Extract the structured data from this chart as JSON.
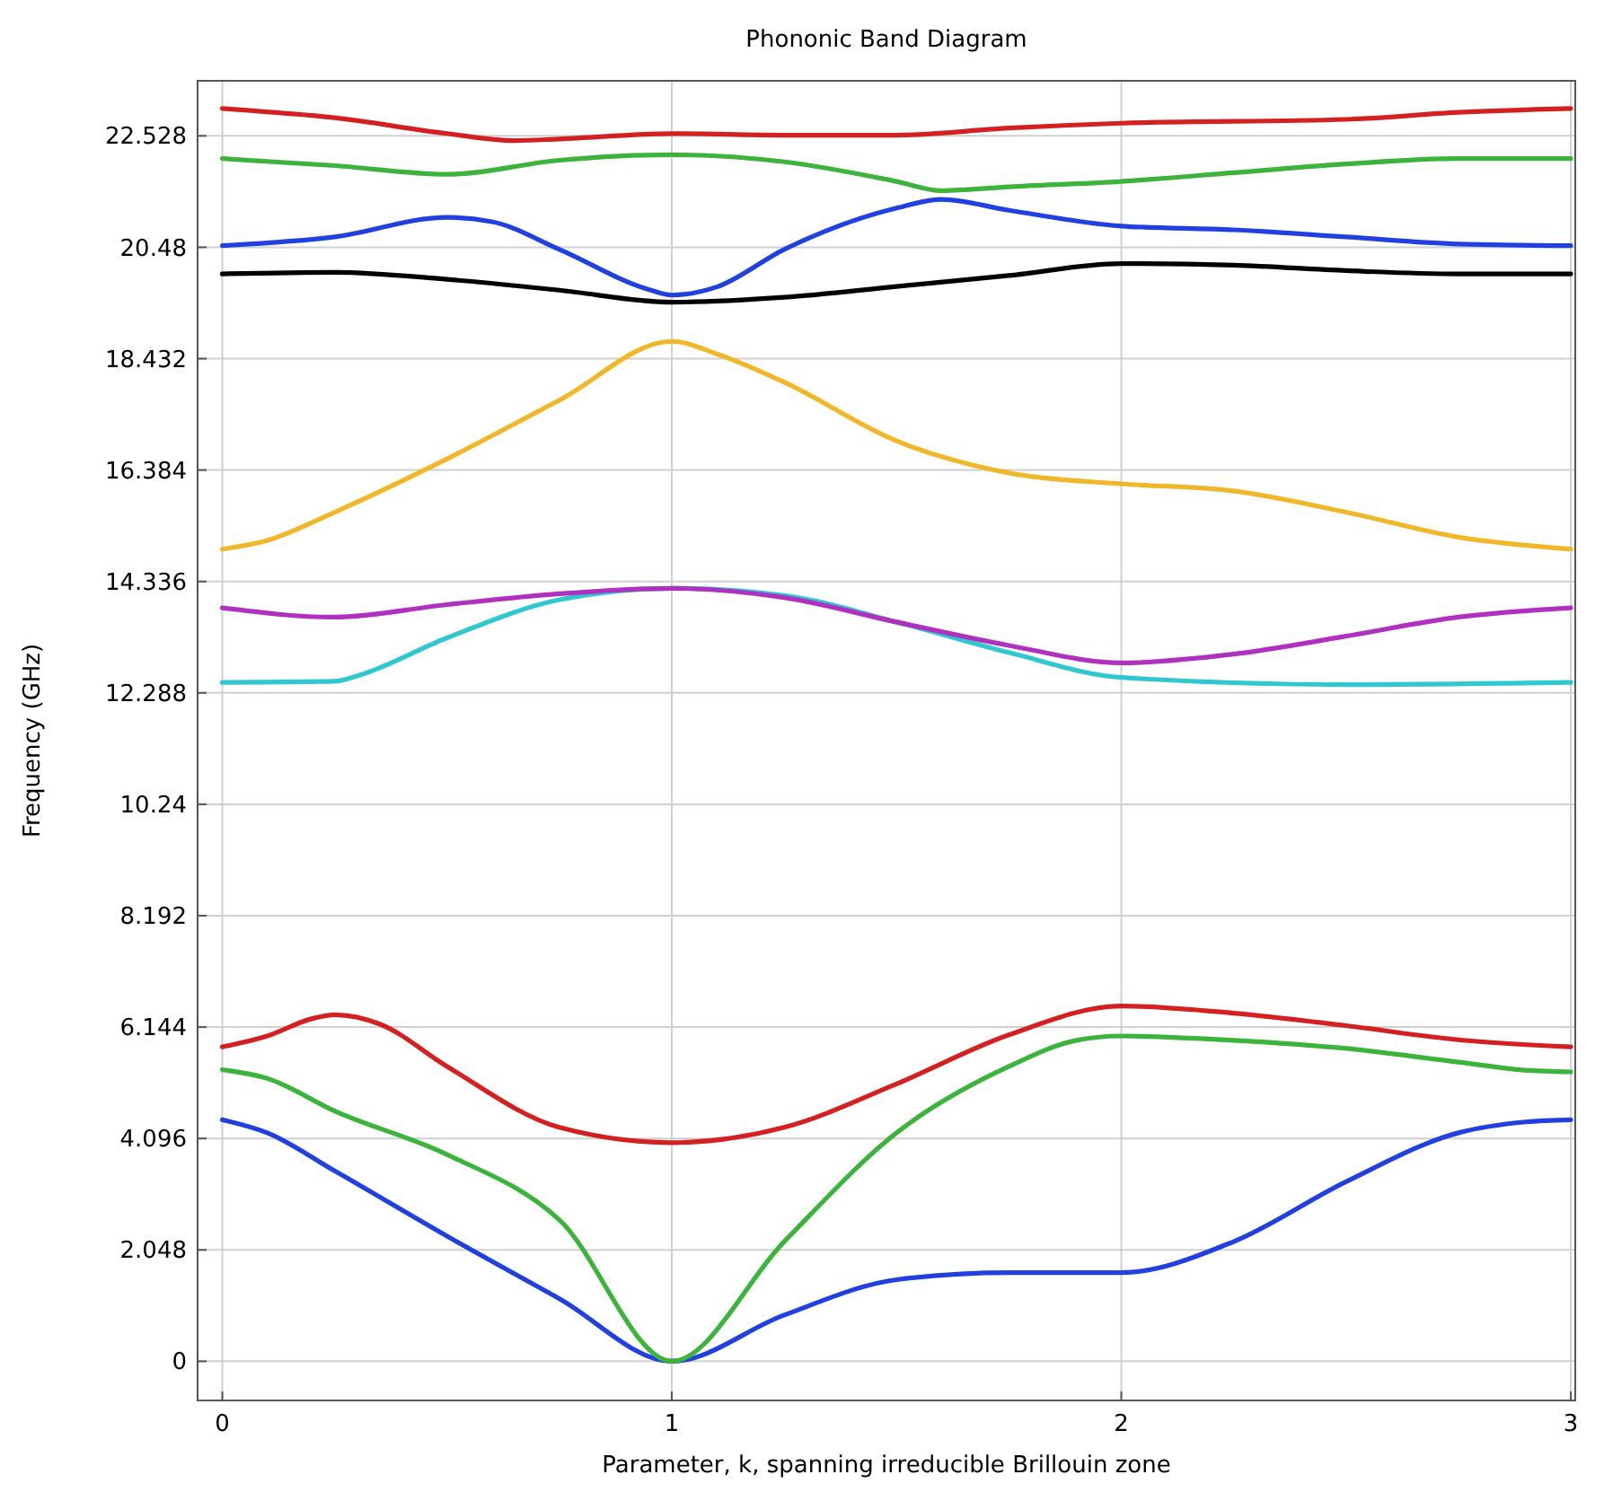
{
  "chart_data": {
    "type": "line",
    "title": "Phononic Band Diagram",
    "xlabel": "Parameter, k, spanning irreducible Brillouin zone",
    "ylabel": "Frequency (GHz)",
    "xlim": [
      -0.055,
      3.01
    ],
    "ylim": [
      -0.72,
      23.54
    ],
    "xticks": [
      0,
      1,
      2,
      3
    ],
    "yticks": [
      0,
      2.048,
      4.096,
      6.144,
      8.192,
      10.24,
      12.288,
      14.336,
      16.384,
      18.432,
      20.48,
      22.528
    ],
    "grid": true,
    "marker": "none",
    "line_style": "solid",
    "series": [
      {
        "color": "#2040e0",
        "x": [
          0,
          0.1,
          0.25,
          0.5,
          0.75,
          1,
          1.25,
          1.5,
          1.75,
          2,
          2.25,
          2.5,
          2.75,
          2.9,
          3
        ],
        "values": [
          4.44,
          4.2,
          3.5,
          2.3,
          1.15,
          0,
          0.85,
          1.5,
          1.63,
          1.63,
          2.2,
          3.3,
          4.2,
          4.4,
          4.44
        ]
      },
      {
        "color": "#3cb43c",
        "x": [
          0,
          0.1,
          0.25,
          0.5,
          0.75,
          1,
          1.25,
          1.5,
          1.75,
          1.9,
          2,
          2.25,
          2.5,
          2.75,
          2.9,
          3
        ],
        "values": [
          5.36,
          5.2,
          4.6,
          3.8,
          2.6,
          0,
          2.2,
          4.2,
          5.42,
          5.9,
          5.98,
          5.9,
          5.75,
          5.5,
          5.35,
          5.32
        ]
      },
      {
        "color": "#d42020",
        "x": [
          0,
          0.1,
          0.2,
          0.25,
          0.35,
          0.5,
          0.75,
          1,
          1.25,
          1.5,
          1.75,
          2,
          2.25,
          2.5,
          2.75,
          3
        ],
        "values": [
          5.78,
          5.98,
          6.3,
          6.37,
          6.2,
          5.42,
          4.3,
          4.02,
          4.3,
          5.1,
          6.0,
          6.53,
          6.4,
          6.17,
          5.91,
          5.78
        ]
      },
      {
        "color": "#30c8d0",
        "x": [
          0,
          0.25,
          0.3,
          0.5,
          0.75,
          1,
          1.25,
          1.5,
          1.75,
          2,
          2.5,
          3
        ],
        "values": [
          12.48,
          12.5,
          12.6,
          13.3,
          14.0,
          14.21,
          14.08,
          13.59,
          13.03,
          12.57,
          12.44,
          12.48
        ]
      },
      {
        "color": "#b030c0",
        "x": [
          0,
          0.25,
          0.5,
          0.75,
          1,
          1.25,
          1.5,
          1.75,
          2,
          2.25,
          2.5,
          2.75,
          3
        ],
        "values": [
          13.85,
          13.68,
          13.91,
          14.11,
          14.21,
          14.04,
          13.59,
          13.16,
          12.84,
          13.0,
          13.33,
          13.68,
          13.85
        ]
      },
      {
        "color": "#f0b828",
        "x": [
          0,
          0.1,
          0.25,
          0.5,
          0.75,
          1,
          1.1,
          1.25,
          1.5,
          1.75,
          2,
          2.25,
          2.5,
          2.75,
          3
        ],
        "values": [
          14.93,
          15.09,
          15.61,
          16.59,
          17.67,
          18.75,
          18.52,
          18.0,
          16.92,
          16.33,
          16.13,
          16.0,
          15.61,
          15.15,
          14.93
        ]
      },
      {
        "color": "#000000",
        "x": [
          0,
          0.25,
          0.5,
          0.75,
          1,
          1.25,
          1.5,
          1.75,
          2,
          2.25,
          2.5,
          2.75,
          3
        ],
        "values": [
          19.99,
          20.02,
          19.89,
          19.69,
          19.47,
          19.56,
          19.76,
          19.96,
          20.18,
          20.15,
          20.05,
          19.99,
          19.99
        ]
      },
      {
        "color": "#2040e0",
        "x": [
          0,
          0.25,
          0.5,
          0.6,
          0.75,
          0.95,
          1,
          1.1,
          1.25,
          1.5,
          1.6,
          1.75,
          2,
          2.25,
          2.5,
          2.75,
          3
        ],
        "values": [
          20.51,
          20.67,
          21.03,
          20.95,
          20.44,
          19.7,
          19.6,
          19.75,
          20.44,
          21.2,
          21.36,
          21.16,
          20.87,
          20.8,
          20.67,
          20.54,
          20.51
        ]
      },
      {
        "color": "#3cb43c",
        "x": [
          0,
          0.25,
          0.5,
          0.75,
          1,
          1.25,
          1.5,
          1.6,
          1.75,
          2,
          2.25,
          2.5,
          2.75,
          3
        ],
        "values": [
          22.11,
          21.98,
          21.82,
          22.08,
          22.18,
          22.05,
          21.69,
          21.52,
          21.59,
          21.69,
          21.85,
          22.01,
          22.11,
          22.11
        ]
      },
      {
        "color": "#d42020",
        "x": [
          0,
          0.25,
          0.5,
          0.65,
          0.75,
          1,
          1.25,
          1.5,
          1.75,
          2,
          2.5,
          2.75,
          3
        ],
        "values": [
          23.03,
          22.86,
          22.57,
          22.44,
          22.47,
          22.57,
          22.54,
          22.54,
          22.67,
          22.76,
          22.83,
          22.96,
          23.03
        ]
      }
    ]
  }
}
